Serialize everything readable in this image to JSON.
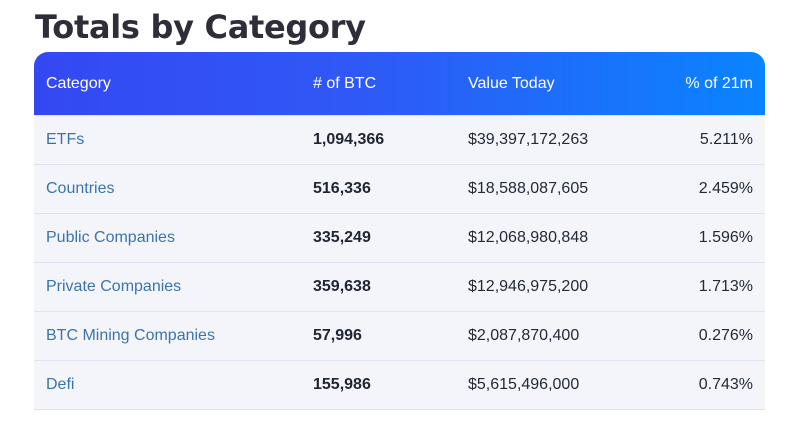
{
  "title": "Totals by Category",
  "table": {
    "headers": {
      "category": "Category",
      "btc": "# of BTC",
      "value": "Value Today",
      "pct": "% of 21m"
    },
    "rows": [
      {
        "category": "ETFs",
        "btc": "1,094,366",
        "value": "$39,397,172,263",
        "pct": "5.211%"
      },
      {
        "category": "Countries",
        "btc": "516,336",
        "value": "$18,588,087,605",
        "pct": "2.459%"
      },
      {
        "category": "Public Companies",
        "btc": "335,249",
        "value": "$12,068,980,848",
        "pct": "1.596%"
      },
      {
        "category": "Private Companies",
        "btc": "359,638",
        "value": "$12,946,975,200",
        "pct": "1.713%"
      },
      {
        "category": "BTC Mining Companies",
        "btc": "57,996",
        "value": "$2,087,870,400",
        "pct": "0.276%"
      },
      {
        "category": "Defi",
        "btc": "155,986",
        "value": "$5,615,496,000",
        "pct": "0.743%"
      }
    ]
  },
  "colors": {
    "header_gradient_start": "#3448f2",
    "header_gradient_end": "#0a84ff",
    "row_background": "#f3f5fb",
    "category_link": "#3b74ad",
    "title_text": "#2e2e3a"
  }
}
